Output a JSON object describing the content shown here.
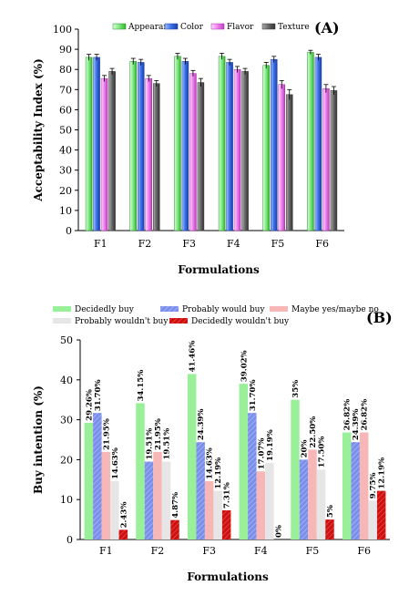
{
  "chart_data": [
    {
      "type": "bar",
      "panel_label": "(A)",
      "title": "",
      "xlabel": "Formulations",
      "ylabel": "Acceptability Index (%)",
      "ylim": [
        0,
        100
      ],
      "yticks": [
        0,
        10,
        20,
        30,
        40,
        50,
        60,
        70,
        80,
        90,
        100
      ],
      "categories": [
        "F1",
        "F2",
        "F3",
        "F4",
        "F5",
        "F6"
      ],
      "legend_position": "top",
      "grid": false,
      "series": [
        {
          "name": "Appearance",
          "color": "#88ee88",
          "values": [
            86,
            84,
            86.5,
            86.5,
            82,
            88.5
          ],
          "errors": [
            1.5,
            1.5,
            1.5,
            1.5,
            1.5,
            1
          ]
        },
        {
          "name": "Color",
          "color": "#3a6fe0",
          "values": [
            86,
            83.5,
            84,
            83.5,
            85,
            86
          ],
          "errors": [
            1.5,
            1.5,
            1.5,
            1.5,
            1.5,
            1.5
          ]
        },
        {
          "name": "Flavor",
          "color": "#ee88ee",
          "values": [
            75.5,
            75.5,
            78,
            80,
            72.5,
            70.5
          ],
          "errors": [
            1.5,
            1.5,
            1.5,
            1.5,
            2,
            2
          ]
        },
        {
          "name": "Texture",
          "color": "#666666",
          "values": [
            79,
            73,
            73.5,
            79,
            67.5,
            69.5
          ],
          "errors": [
            1.5,
            1.5,
            2,
            1.5,
            2.5,
            2
          ]
        }
      ]
    },
    {
      "type": "bar",
      "panel_label": "(B)",
      "title": "",
      "xlabel": "Formulations",
      "ylabel": "Buy intention (%)",
      "ylim": [
        0,
        50
      ],
      "yticks": [
        0,
        10,
        20,
        30,
        40,
        50
      ],
      "categories": [
        "F1",
        "F2",
        "F3",
        "F4",
        "F5",
        "F6"
      ],
      "legend_position": "top",
      "grid": false,
      "series": [
        {
          "name": "Decidedly buy",
          "color": "#99f099",
          "values": [
            29.26,
            34.15,
            41.46,
            39.02,
            35,
            26.82
          ],
          "labels": [
            "29.26%",
            "34.15%",
            "41.46%",
            "39.02%",
            "35%",
            "26.82%"
          ]
        },
        {
          "name": "Probably would buy",
          "color": "#7b8fe8",
          "values": [
            31.7,
            19.51,
            24.39,
            31.7,
            20,
            24.39
          ],
          "labels": [
            "31.70%",
            "19.51%",
            "24.39%",
            "31.70%",
            "20%",
            "24.39%"
          ]
        },
        {
          "name": "Maybe yes/maybe no",
          "color": "#f7b7b7",
          "values": [
            21.95,
            21.95,
            14.63,
            17.07,
            22.5,
            26.82
          ],
          "labels": [
            "21.95%",
            "21.95%",
            "14.63%",
            "17.07%",
            "22.50%",
            "26.82%"
          ]
        },
        {
          "name": "Probably wouldn't buy",
          "color": "#e6e6e6",
          "values": [
            14.63,
            19.51,
            12.19,
            19.19,
            17.5,
            9.75
          ],
          "labels": [
            "14.63%",
            "19.51%",
            "12.19%",
            "19.19%",
            "17.50%",
            "9.75%"
          ]
        },
        {
          "name": "Decidedly wouldn't buy",
          "color": "#cc1111",
          "values": [
            2.43,
            4.87,
            7.31,
            0,
            5,
            12.19
          ],
          "labels": [
            "2.43%",
            "4.87%",
            "7.31%",
            "0%",
            "5%",
            "12.19%"
          ]
        }
      ]
    }
  ]
}
